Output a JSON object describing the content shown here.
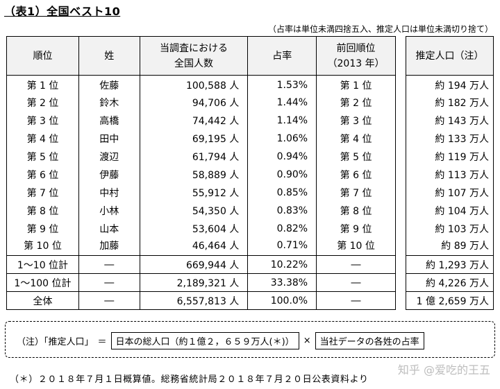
{
  "title": "（表1）全国ベスト10",
  "note_top": "（占率は単位未満四捨五入、推定人口は単位未満切り捨て）",
  "headers": {
    "rank": "順位",
    "surname": "姓",
    "count_line1": "当調査における",
    "count_line2": "全国人数",
    "share": "占率",
    "prev_line1": "前回順位",
    "prev_line2": "（2013 年）",
    "estimate": "推定人口（注）"
  },
  "rows": [
    {
      "rank": "第 1 位",
      "surname": "佐藤",
      "count": "100,588 人",
      "share": "1.53%",
      "prev": "第 1 位",
      "estimate": "約 194 万人"
    },
    {
      "rank": "第 2 位",
      "surname": "鈴木",
      "count": "94,706 人",
      "share": "1.44%",
      "prev": "第 2 位",
      "estimate": "約 182 万人"
    },
    {
      "rank": "第 3 位",
      "surname": "高橋",
      "count": "74,442 人",
      "share": "1.14%",
      "prev": "第 3 位",
      "estimate": "約 143 万人"
    },
    {
      "rank": "第 4 位",
      "surname": "田中",
      "count": "69,195 人",
      "share": "1.06%",
      "prev": "第 4 位",
      "estimate": "約 133 万人"
    },
    {
      "rank": "第 5 位",
      "surname": "渡辺",
      "count": "61,794 人",
      "share": "0.94%",
      "prev": "第 5 位",
      "estimate": "約 119 万人"
    },
    {
      "rank": "第 6 位",
      "surname": "伊藤",
      "count": "58,889 人",
      "share": "0.90%",
      "prev": "第 6 位",
      "estimate": "約 113 万人"
    },
    {
      "rank": "第 7 位",
      "surname": "中村",
      "count": "55,912 人",
      "share": "0.85%",
      "prev": "第 7 位",
      "estimate": "約 107 万人"
    },
    {
      "rank": "第 8 位",
      "surname": "小林",
      "count": "54,350 人",
      "share": "0.83%",
      "prev": "第 8 位",
      "estimate": "約 104 万人"
    },
    {
      "rank": "第 9 位",
      "surname": "山本",
      "count": "53,604 人",
      "share": "0.82%",
      "prev": "第 9 位",
      "estimate": "約 103 万人"
    },
    {
      "rank": "第 10 位",
      "surname": "加藤",
      "count": "46,464 人",
      "share": "0.71%",
      "prev": "第 10 位",
      "estimate": "約 89 万人"
    }
  ],
  "summary": [
    {
      "rank": "1～10 位計",
      "surname": "―",
      "count": "669,944 人",
      "share": "10.22%",
      "prev": "―",
      "estimate": "約 1,293 万人"
    },
    {
      "rank": "1～100 位計",
      "surname": "―",
      "count": "2,189,321 人",
      "share": "33.38%",
      "prev": "―",
      "estimate": "約 4,226 万人"
    },
    {
      "rank": "全体",
      "surname": "―",
      "count": "6,557,813 人",
      "share": "100.0%",
      "prev": "―",
      "estimate": "1 億 2,659 万人"
    }
  ],
  "formula": {
    "label": "（注）「推定人口」",
    "eq": "＝",
    "term1": "日本の総人口（約１億２，６５９万人(＊)）",
    "times": "×",
    "term2": "当社データの各姓の占率"
  },
  "footnote": "（＊）２０１８年７月１日概算値。総務省統計局２０１８年７月２０日公表資料より",
  "watermark": "知乎 @爱吃的王五"
}
